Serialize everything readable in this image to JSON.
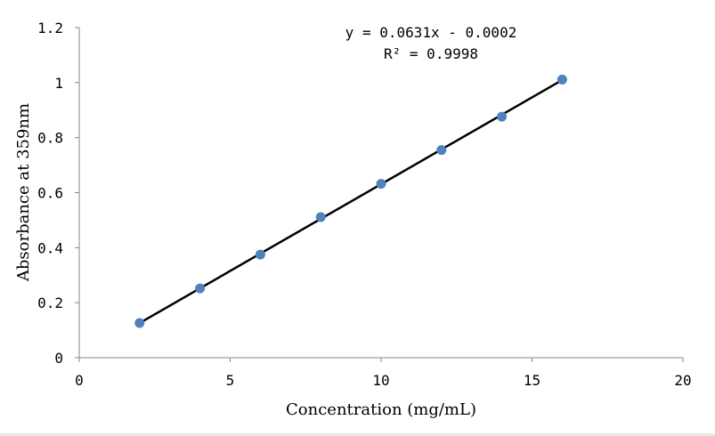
{
  "chart_data": {
    "type": "scatter",
    "x": [
      2,
      4,
      6,
      8,
      10,
      12,
      14,
      16
    ],
    "y": [
      0.126,
      0.252,
      0.375,
      0.511,
      0.632,
      0.755,
      0.876,
      1.011
    ],
    "trendline": {
      "slope": 0.0631,
      "intercept": -0.0002,
      "x_range": [
        2,
        16
      ]
    },
    "xlabel": "Concentration (mg/mL)",
    "ylabel": "Absorbance at 359nm",
    "xlim": [
      0,
      20
    ],
    "ylim": [
      0,
      1.2
    ],
    "xticks": [
      "0",
      "5",
      "10",
      "15",
      "20"
    ],
    "yticks": [
      "0",
      "0.2",
      "0.4",
      "0.6",
      "0.8",
      "1",
      "1.2"
    ],
    "annotations": [
      "y = 0.0631x - 0.0002",
      "R² = 0.9998"
    ],
    "grid": false,
    "colors": {
      "marker": "#4f81bd",
      "trendline": "#000000",
      "axis": "#868686"
    }
  }
}
